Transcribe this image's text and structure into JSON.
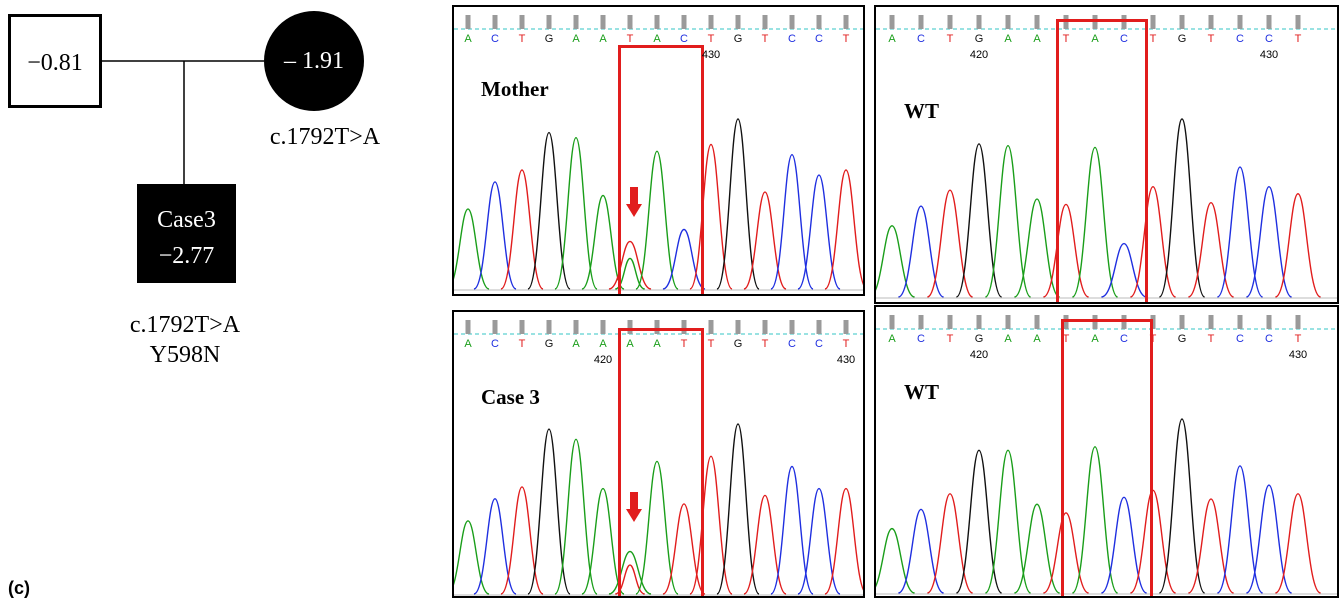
{
  "pedigree": {
    "father": {
      "value": "−0.81"
    },
    "mother": {
      "value": "– 1.91",
      "variant": "c.1792T>A"
    },
    "proband": {
      "name": "Case3",
      "value": "−2.77",
      "variant": "c.1792T>A",
      "protein": "Y598N"
    }
  },
  "figure_label": "(c)",
  "colors": {
    "A": "#1a9e1a",
    "C": "#1f2fe0",
    "G": "#111111",
    "T": "#e11d1d",
    "highlight": "#e11d1d",
    "dashed": "#33c6c6"
  },
  "panels": [
    {
      "id": "mother",
      "label": "Mother",
      "bases": [
        "A",
        "C",
        "T",
        "G",
        "A",
        "A",
        "T",
        "A",
        "C",
        "T",
        "G",
        "T",
        "C",
        "C",
        "T"
      ],
      "positions": [
        {
          "text": "430",
          "after_index": 9
        }
      ]
    },
    {
      "id": "wt1",
      "label": "WT",
      "bases": [
        "A",
        "C",
        "T",
        "G",
        "A",
        "A",
        "T",
        "A",
        "C",
        "T",
        "G",
        "T",
        "C",
        "C",
        "T"
      ],
      "positions": [
        {
          "text": "420",
          "after_index": 3
        },
        {
          "text": "430",
          "after_index": 13
        }
      ]
    },
    {
      "id": "case3",
      "label": "Case 3",
      "bases": [
        "A",
        "C",
        "T",
        "G",
        "A",
        "A",
        "A",
        "A",
        "T",
        "T",
        "G",
        "T",
        "C",
        "C",
        "T"
      ],
      "positions": [
        {
          "text": "420",
          "after_index": 5
        },
        {
          "text": "430",
          "after_index": 14
        }
      ]
    },
    {
      "id": "wt2",
      "label": "WT",
      "bases": [
        "A",
        "C",
        "T",
        "G",
        "A",
        "A",
        "T",
        "A",
        "C",
        "T",
        "G",
        "T",
        "C",
        "C",
        "T"
      ],
      "positions": [
        {
          "text": "420",
          "after_index": 3
        },
        {
          "text": "430",
          "after_index": 14
        }
      ]
    }
  ]
}
